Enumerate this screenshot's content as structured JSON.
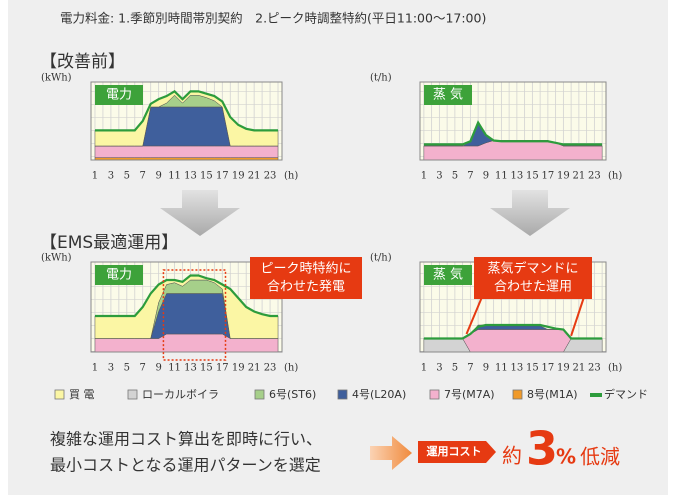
{
  "note": "電力料金: 1.季節別時間帯別契約　2.ピーク時調整特約(平日11:00～17:00)",
  "sections": [
    "【改善前】",
    "【EMS最適運用】"
  ],
  "legend": [
    {
      "name": "買 電",
      "color": "#fbf6a4"
    },
    {
      "name": "ローカルボイラ",
      "color": "#d3d3d3"
    },
    {
      "name": "6号(ST6)",
      "color": "#a6cf8a"
    },
    {
      "name": "4号(L20A)",
      "color": "#3f5f9c"
    },
    {
      "name": "7号(M7A)",
      "color": "#f3b1cd"
    },
    {
      "name": "8号(M1A)",
      "color": "#f09a2a"
    },
    {
      "name": "デマンド",
      "color": "#2d9c3c"
    }
  ],
  "chart_data": [
    {
      "type": "area",
      "badge": "電力",
      "ylabel": "(kWh)",
      "xlabel": "(h)",
      "x": [
        1,
        2,
        3,
        4,
        5,
        6,
        7,
        8,
        9,
        10,
        11,
        12,
        13,
        14,
        15,
        16,
        17,
        18,
        19,
        20,
        21,
        22,
        23,
        24
      ],
      "xlim": [
        0.5,
        24.5
      ],
      "xticks": [
        1,
        3,
        5,
        7,
        9,
        11,
        13,
        15,
        17,
        19,
        21,
        23
      ],
      "ylim": [
        0,
        100
      ],
      "series": [
        {
          "name": "8号(M1A)",
          "values": [
            3,
            3,
            3,
            3,
            3,
            3,
            3,
            3,
            3,
            3,
            3,
            3,
            3,
            3,
            3,
            3,
            3,
            3,
            3,
            3,
            3,
            3,
            3,
            3
          ]
        },
        {
          "name": "7号(M7A)",
          "values": [
            15,
            15,
            15,
            15,
            15,
            15,
            15,
            15,
            15,
            15,
            15,
            15,
            15,
            15,
            15,
            15,
            15,
            15,
            15,
            15,
            15,
            15,
            15,
            15
          ]
        },
        {
          "name": "4号(L20A)",
          "values": [
            0,
            0,
            0,
            0,
            0,
            0,
            0,
            50,
            50,
            50,
            50,
            50,
            50,
            50,
            50,
            50,
            50,
            0,
            0,
            0,
            0,
            0,
            0,
            0
          ]
        },
        {
          "name": "6号(ST6)",
          "values": [
            0,
            0,
            0,
            0,
            0,
            0,
            0,
            0,
            0,
            5,
            15,
            5,
            15,
            15,
            12,
            8,
            0,
            0,
            0,
            0,
            0,
            0,
            0,
            0
          ]
        },
        {
          "name": "買 電",
          "values": [
            20,
            20,
            20,
            20,
            20,
            20,
            32,
            4,
            10,
            9,
            5,
            5,
            5,
            5,
            5,
            6,
            7,
            37,
            27,
            22,
            20,
            20,
            20,
            20
          ]
        },
        {
          "name": "デマンド",
          "type": "line",
          "values": [
            38,
            38,
            38,
            38,
            38,
            38,
            50,
            72,
            78,
            82,
            88,
            78,
            88,
            88,
            85,
            82,
            75,
            55,
            45,
            40,
            38,
            38,
            38,
            38
          ]
        }
      ]
    },
    {
      "type": "area",
      "badge": "蒸 気",
      "ylabel": "(t/h)",
      "xlabel": "(h)",
      "x": [
        1,
        2,
        3,
        4,
        5,
        6,
        7,
        8,
        9,
        10,
        11,
        12,
        13,
        14,
        15,
        16,
        17,
        18,
        19,
        20,
        21,
        22,
        23,
        24
      ],
      "xlim": [
        0.5,
        24.5
      ],
      "xticks": [
        1,
        3,
        5,
        7,
        9,
        11,
        13,
        15,
        17,
        19,
        21,
        23
      ],
      "ylim": [
        0,
        100
      ],
      "series": [
        {
          "name": "7号(M7A)",
          "values": [
            18,
            18,
            18,
            18,
            18,
            18,
            18,
            18,
            22,
            25,
            25,
            25,
            25,
            25,
            25,
            25,
            25,
            22,
            18,
            18,
            18,
            18,
            18,
            18
          ]
        },
        {
          "name": "4号(L20A)",
          "values": [
            0,
            0,
            0,
            0,
            0,
            0,
            5,
            30,
            10,
            0,
            0,
            0,
            0,
            0,
            0,
            0,
            0,
            0,
            0,
            0,
            0,
            0,
            0,
            0
          ]
        },
        {
          "name": "デマンド",
          "type": "line",
          "values": [
            20,
            20,
            20,
            20,
            20,
            20,
            24,
            48,
            32,
            25,
            24,
            24,
            24,
            24,
            24,
            24,
            24,
            22,
            20,
            20,
            20,
            20,
            20,
            20
          ]
        }
      ]
    },
    {
      "type": "area",
      "badge": "電力",
      "ylabel": "(kWh)",
      "xlabel": "(h)",
      "callout": [
        "ピーク時特約に",
        "合わせた発電"
      ],
      "x": [
        1,
        2,
        3,
        4,
        5,
        6,
        7,
        8,
        9,
        10,
        11,
        12,
        13,
        14,
        15,
        16,
        17,
        18,
        19,
        20,
        21,
        22,
        23,
        24
      ],
      "xlim": [
        0.5,
        24.5
      ],
      "xticks": [
        1,
        3,
        5,
        7,
        9,
        11,
        13,
        15,
        17,
        19,
        21,
        23
      ],
      "ylim": [
        0,
        100
      ],
      "series": [
        {
          "name": "7号(M7A)",
          "values": [
            15,
            15,
            15,
            15,
            15,
            15,
            15,
            15,
            15,
            20,
            20,
            20,
            20,
            20,
            20,
            20,
            20,
            15,
            15,
            15,
            15,
            15,
            15,
            15
          ]
        },
        {
          "name": "4号(L20A)",
          "values": [
            0,
            0,
            0,
            0,
            0,
            0,
            0,
            0,
            30,
            45,
            45,
            45,
            45,
            45,
            45,
            45,
            45,
            0,
            0,
            0,
            0,
            0,
            0,
            0
          ]
        },
        {
          "name": "6号(ST6)",
          "values": [
            0,
            0,
            0,
            0,
            0,
            0,
            0,
            0,
            10,
            10,
            12,
            8,
            15,
            15,
            15,
            12,
            5,
            0,
            0,
            0,
            0,
            0,
            0,
            0
          ]
        },
        {
          "name": "買 電",
          "values": [
            25,
            25,
            25,
            25,
            25,
            25,
            35,
            50,
            20,
            5,
            3,
            5,
            5,
            5,
            2,
            3,
            5,
            55,
            45,
            35,
            30,
            27,
            25,
            25
          ]
        },
        {
          "name": "デマンド",
          "type": "line",
          "values": [
            40,
            40,
            40,
            40,
            40,
            40,
            50,
            65,
            75,
            80,
            80,
            78,
            85,
            85,
            82,
            80,
            75,
            70,
            60,
            50,
            45,
            42,
            40,
            40
          ]
        }
      ]
    },
    {
      "type": "area",
      "badge": "蒸 気",
      "ylabel": "(t/h)",
      "xlabel": "(h)",
      "callout": [
        "蒸気デマンドに",
        "合わせた運用"
      ],
      "x": [
        1,
        2,
        3,
        4,
        5,
        6,
        7,
        8,
        9,
        10,
        11,
        12,
        13,
        14,
        15,
        16,
        17,
        18,
        19,
        20,
        21,
        22,
        23,
        24
      ],
      "xlim": [
        0.5,
        24.5
      ],
      "xticks": [
        1,
        3,
        5,
        7,
        9,
        11,
        13,
        15,
        17,
        19,
        21,
        23
      ],
      "ylim": [
        0,
        100
      ],
      "series": [
        {
          "name": "ローカルボイラ",
          "values": [
            15,
            15,
            15,
            15,
            15,
            15,
            0,
            0,
            0,
            0,
            0,
            0,
            0,
            0,
            0,
            0,
            0,
            0,
            0,
            15,
            15,
            15,
            15,
            15
          ]
        },
        {
          "name": "7号(M7A)",
          "values": [
            0,
            0,
            0,
            0,
            0,
            0,
            20,
            25,
            25,
            25,
            25,
            25,
            25,
            25,
            25,
            25,
            25,
            25,
            25,
            0,
            0,
            0,
            0,
            0
          ]
        },
        {
          "name": "4号(L20A)",
          "values": [
            0,
            0,
            0,
            0,
            0,
            0,
            0,
            5,
            5,
            4,
            4,
            4,
            4,
            4,
            4,
            4,
            0,
            0,
            0,
            0,
            0,
            0,
            0,
            0
          ]
        },
        {
          "name": "デマンド",
          "type": "line",
          "values": [
            15,
            15,
            15,
            15,
            15,
            15,
            20,
            28,
            30,
            30,
            30,
            30,
            30,
            30,
            30,
            30,
            28,
            26,
            25,
            15,
            15,
            15,
            15,
            15
          ]
        }
      ]
    }
  ],
  "summary": [
    "複雑な運用コスト算出を即時に行い、",
    "最小コストとなる運用パターンを選定"
  ],
  "result": {
    "badge": "運用コスト",
    "prefix": "約",
    "value": 3,
    "unit": "%",
    "suffix": "低減"
  }
}
